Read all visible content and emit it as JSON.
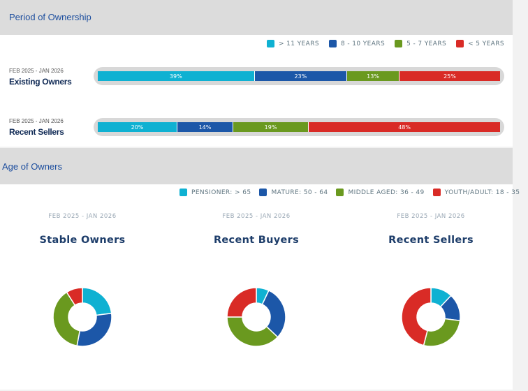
{
  "ownership": {
    "title": "Period of Ownership",
    "legend": [
      {
        "label": "> 11 YEARS",
        "color": "#0fb1d2"
      },
      {
        "label": "8 - 10 YEARS",
        "color": "#1c57a8"
      },
      {
        "label": "5 - 7 YEARS",
        "color": "#6a991f"
      },
      {
        "label": "< 5 YEARS",
        "color": "#d92b26"
      }
    ],
    "rows": [
      {
        "date": "FEB 2025 - JAN 2026",
        "name": "Existing Owners",
        "labels": [
          "39%",
          "23%",
          "13%",
          "25%"
        ]
      },
      {
        "date": "FEB 2025 - JAN 2026",
        "name": "Recent Sellers",
        "labels": [
          "20%",
          "14%",
          "19%",
          "48%"
        ]
      }
    ]
  },
  "age": {
    "title": "Age of Owners",
    "legend": [
      {
        "label": "PENSIONER: > 65",
        "color": "#0fb1d2"
      },
      {
        "label": "MATURE: 50 - 64",
        "color": "#1c57a8"
      },
      {
        "label": "MIDDLE AGED: 36 - 49",
        "color": "#6a991f"
      },
      {
        "label": "YOUTH/ADULT: 18 - 35",
        "color": "#d92b26"
      }
    ],
    "donuts": [
      {
        "date": "FEB 2025 - JAN 2026",
        "title": "Stable Owners"
      },
      {
        "date": "FEB 2025 - JAN 2026",
        "title": "Recent Buyers"
      },
      {
        "date": "FEB 2025 - JAN 2026",
        "title": "Recent Sellers"
      }
    ]
  },
  "chart_data": [
    {
      "type": "bar",
      "title": "Period of Ownership",
      "stacked": true,
      "orientation": "horizontal",
      "categories": [
        "Existing Owners",
        "Recent Sellers"
      ],
      "series": [
        {
          "name": "> 11 YEARS",
          "values": [
            39,
            20
          ],
          "color": "#0fb1d2"
        },
        {
          "name": "8 - 10 YEARS",
          "values": [
            23,
            14
          ],
          "color": "#1c57a8"
        },
        {
          "name": "5 - 7 YEARS",
          "values": [
            13,
            19
          ],
          "color": "#6a991f"
        },
        {
          "name": "< 5 YEARS",
          "values": [
            25,
            48
          ],
          "color": "#d92b26"
        }
      ]
    },
    {
      "type": "pie",
      "donut": true,
      "title": "Stable Owners",
      "categories": [
        "PENSIONER: > 65",
        "MATURE: 50 - 64",
        "MIDDLE AGED: 36 - 49",
        "YOUTH/ADULT: 18 - 35"
      ],
      "values": [
        23,
        30,
        38,
        9
      ],
      "colors": [
        "#0fb1d2",
        "#1c57a8",
        "#6a991f",
        "#d92b26"
      ]
    },
    {
      "type": "pie",
      "donut": true,
      "title": "Recent Buyers",
      "categories": [
        "PENSIONER: > 65",
        "MATURE: 50 - 64",
        "MIDDLE AGED: 36 - 49",
        "YOUTH/ADULT: 18 - 35"
      ],
      "values": [
        7,
        30,
        38,
        25
      ],
      "colors": [
        "#0fb1d2",
        "#1c57a8",
        "#6a991f",
        "#d92b26"
      ]
    },
    {
      "type": "pie",
      "donut": true,
      "title": "Recent Sellers",
      "categories": [
        "PENSIONER: > 65",
        "MATURE: 50 - 64",
        "MIDDLE AGED: 36 - 49",
        "YOUTH/ADULT: 18 - 35"
      ],
      "values": [
        12,
        15,
        27,
        46
      ],
      "colors": [
        "#0fb1d2",
        "#1c57a8",
        "#6a991f",
        "#d92b26"
      ]
    }
  ]
}
